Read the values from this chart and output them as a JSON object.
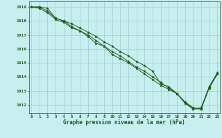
{
  "title": "Graphe pression niveau de la mer (hPa)",
  "xlabel_ticks": [
    0,
    1,
    2,
    3,
    4,
    5,
    6,
    7,
    8,
    9,
    10,
    11,
    12,
    13,
    14,
    15,
    16,
    17,
    18,
    19,
    20,
    21,
    22,
    23
  ],
  "ylim": [
    1011.4,
    1019.4
  ],
  "xlim": [
    -0.3,
    23.3
  ],
  "yticks": [
    1012,
    1013,
    1014,
    1015,
    1016,
    1017,
    1018,
    1019
  ],
  "background_color": "#c8eef0",
  "grid_color": "#a0cccc",
  "line_color": "#1a5c1a",
  "lines": [
    [
      1019.0,
      1019.0,
      1018.9,
      1018.2,
      1018.0,
      1017.8,
      1017.5,
      1017.2,
      1016.9,
      1016.5,
      1016.2,
      1015.8,
      1015.5,
      1015.1,
      1014.8,
      1014.4,
      1013.5,
      1013.3,
      1012.8,
      1012.2,
      1011.8,
      1011.7,
      1013.3,
      1014.3
    ],
    [
      1019.0,
      1019.0,
      1018.7,
      1018.2,
      1018.0,
      1017.6,
      1017.3,
      1017.0,
      1016.6,
      1016.2,
      1015.8,
      1015.5,
      1015.1,
      1014.7,
      1014.4,
      1014.0,
      1013.6,
      1013.2,
      1012.8,
      1012.2,
      1011.7,
      1011.7,
      1013.2,
      1014.2
    ],
    [
      1019.0,
      1018.9,
      1018.6,
      1018.1,
      1017.9,
      1017.5,
      1017.3,
      1016.9,
      1016.4,
      1016.2,
      1015.6,
      1015.3,
      1015.0,
      1014.6,
      1014.2,
      1013.8,
      1013.4,
      1013.1,
      1012.8,
      1012.1,
      1011.7,
      1011.8,
      1013.3,
      1014.2
    ]
  ],
  "fig_width": 3.2,
  "fig_height": 2.0,
  "dpi": 100
}
